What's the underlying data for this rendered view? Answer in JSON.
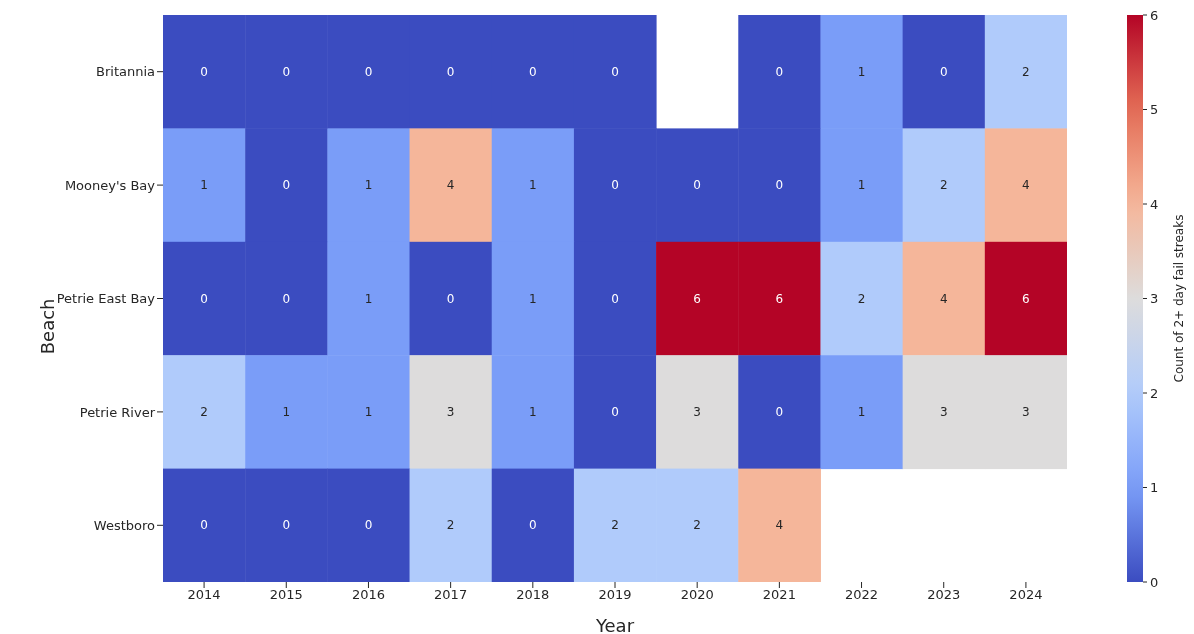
{
  "chart_data": {
    "type": "heatmap",
    "xlabel": "Year",
    "ylabel": "Beach",
    "clabel": "Count of 2+ day fail streaks",
    "categories": [
      "2014",
      "2015",
      "2016",
      "2017",
      "2018",
      "2019",
      "2020",
      "2021",
      "2022",
      "2023",
      "2024"
    ],
    "y_categories": [
      "Britannia",
      "Mooney's Bay",
      "Petrie East Bay",
      "Petrie River",
      "Westboro"
    ],
    "cells": [
      [
        0,
        0,
        0,
        0,
        0,
        0,
        null,
        0,
        1,
        0,
        2
      ],
      [
        1,
        0,
        1,
        4,
        1,
        0,
        0,
        0,
        1,
        2,
        4
      ],
      [
        0,
        0,
        1,
        0,
        1,
        0,
        6,
        6,
        2,
        4,
        6
      ],
      [
        2,
        1,
        1,
        3,
        1,
        0,
        3,
        0,
        1,
        3,
        3
      ],
      [
        0,
        0,
        0,
        2,
        0,
        2,
        2,
        4,
        null,
        null,
        null
      ]
    ],
    "clim": [
      0,
      6
    ],
    "cticks": [
      0,
      1,
      2,
      3,
      4,
      5,
      6
    ],
    "data_labels": true
  }
}
